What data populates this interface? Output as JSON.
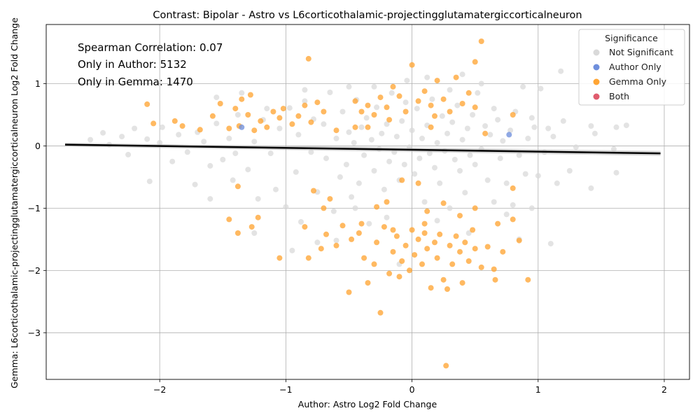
{
  "chart_data": {
    "type": "scatter",
    "title": "Contrast: Bipolar - Astro vs L6corticothalamic-projectingglutamatergiccorticalneuron",
    "xlabel": "Author: Astro Log2 Fold Change",
    "ylabel": "Gemma: L6corticothalamic-projectingglutamatergiccorticalneuron Log2 Fold Change",
    "xlim": [
      -2.9,
      2.2
    ],
    "ylim": [
      -3.75,
      1.95
    ],
    "x_ticks": [
      -2,
      -1,
      0,
      1,
      2
    ],
    "y_ticks": [
      -3,
      -2,
      -1,
      0,
      1
    ],
    "grid": true,
    "annotations": [
      "Spearman Correlation: 0.07",
      "Only in Author: 5132",
      "Only in Gemma: 1470"
    ],
    "legend": {
      "title": "Significance",
      "position": "top-right",
      "entries": [
        {
          "label": "Not Significant",
          "color": "#d9d9d9"
        },
        {
          "label": "Author Only",
          "color": "#6f8fdc"
        },
        {
          "label": "Gemma Only",
          "color": "#ffa534"
        },
        {
          "label": "Both",
          "color": "#e05c6e"
        }
      ]
    },
    "regression_line": {
      "x": [
        -2.75,
        1.97
      ],
      "y": [
        0.02,
        -0.12
      ],
      "color": "#000000"
    },
    "series": [
      {
        "name": "Not Significant",
        "color": "#d9d9d9",
        "points": [
          [
            -2.55,
            0.1
          ],
          [
            -2.45,
            0.21
          ],
          [
            -2.4,
            0.02
          ],
          [
            -2.3,
            0.15
          ],
          [
            -2.2,
            0.28
          ],
          [
            -2.1,
            0.11
          ],
          [
            -2.08,
            -0.57
          ],
          [
            -2.25,
            -0.14
          ],
          [
            -1.98,
            0.3
          ],
          [
            -1.9,
            -0.25
          ],
          [
            -1.85,
            0.18
          ],
          [
            -1.78,
            -0.1
          ],
          [
            -1.72,
            -0.62
          ],
          [
            -1.65,
            0.07
          ],
          [
            -1.6,
            -0.32
          ],
          [
            -1.55,
            0.36
          ],
          [
            -1.5,
            -0.22
          ],
          [
            -1.45,
            0.12
          ],
          [
            -1.42,
            -0.55
          ],
          [
            -1.38,
            0.5
          ],
          [
            -1.35,
            0.85
          ],
          [
            -1.3,
            -0.38
          ],
          [
            -1.25,
            0.07
          ],
          [
            -1.22,
            -0.85
          ],
          [
            -1.18,
            0.42
          ],
          [
            -1.12,
            -0.12
          ],
          [
            -1.08,
            -0.7
          ],
          [
            -1.05,
            0.28
          ],
          [
            -1.0,
            -0.98
          ],
          [
            -0.97,
            0.61
          ],
          [
            -0.92,
            -0.42
          ],
          [
            -0.9,
            0.18
          ],
          [
            -0.88,
            -1.22
          ],
          [
            -0.85,
            0.72
          ],
          [
            -0.8,
            -0.1
          ],
          [
            -0.78,
            0.43
          ],
          [
            -0.75,
            -0.74
          ],
          [
            -0.7,
            0.35
          ],
          [
            -0.68,
            -0.2
          ],
          [
            -0.65,
            0.86
          ],
          [
            -0.62,
            -1.05
          ],
          [
            -0.6,
            0.12
          ],
          [
            -0.57,
            -0.5
          ],
          [
            -0.55,
            0.55
          ],
          [
            -0.52,
            -0.3
          ],
          [
            -0.5,
            0.22
          ],
          [
            -0.48,
            -0.82
          ],
          [
            -0.46,
            0.05
          ],
          [
            -0.44,
            0.74
          ],
          [
            -0.42,
            -0.6
          ],
          [
            -0.4,
            0.3
          ],
          [
            -0.38,
            -0.15
          ],
          [
            -0.36,
            0.45
          ],
          [
            -0.34,
            -1.25
          ],
          [
            -0.32,
            0.1
          ],
          [
            -0.3,
            -0.4
          ],
          [
            -0.28,
            0.62
          ],
          [
            -0.26,
            -0.05
          ],
          [
            -0.24,
            0.2
          ],
          [
            -0.22,
            -0.7
          ],
          [
            -0.2,
            0.35
          ],
          [
            -0.18,
            -0.25
          ],
          [
            -0.16,
            0.85
          ],
          [
            -0.14,
            -0.1
          ],
          [
            -0.12,
            0.15
          ],
          [
            -0.1,
            -0.55
          ],
          [
            -0.08,
            0.4
          ],
          [
            -0.06,
            -0.3
          ],
          [
            -0.04,
            1.05
          ],
          [
            -0.02,
            -0.02
          ],
          [
            0.0,
            0.25
          ],
          [
            0.02,
            -0.45
          ],
          [
            0.04,
            0.6
          ],
          [
            0.06,
            -0.2
          ],
          [
            0.08,
            0.12
          ],
          [
            0.1,
            -0.9
          ],
          [
            0.12,
            0.33
          ],
          [
            0.14,
            -0.12
          ],
          [
            0.16,
            0.75
          ],
          [
            0.18,
            -0.35
          ],
          [
            0.2,
            0.05
          ],
          [
            0.22,
            -0.6
          ],
          [
            0.24,
            0.48
          ],
          [
            0.26,
            -0.08
          ],
          [
            0.28,
            0.2
          ],
          [
            0.3,
            -1.0
          ],
          [
            0.32,
            0.38
          ],
          [
            0.34,
            -0.22
          ],
          [
            0.36,
            0.65
          ],
          [
            0.38,
            -0.4
          ],
          [
            0.4,
            0.1
          ],
          [
            0.42,
            -0.75
          ],
          [
            0.44,
            0.28
          ],
          [
            0.46,
            -0.15
          ],
          [
            0.48,
            0.5
          ],
          [
            0.5,
            -0.3
          ],
          [
            0.52,
            0.85
          ],
          [
            0.55,
            -0.05
          ],
          [
            0.58,
            0.32
          ],
          [
            0.6,
            -0.55
          ],
          [
            0.62,
            0.18
          ],
          [
            0.65,
            -0.9
          ],
          [
            0.68,
            0.42
          ],
          [
            0.7,
            -0.2
          ],
          [
            0.72,
            0.08
          ],
          [
            0.75,
            -0.6
          ],
          [
            0.78,
            0.25
          ],
          [
            0.8,
            -0.95
          ],
          [
            0.82,
            0.55
          ],
          [
            0.85,
            -0.15
          ],
          [
            0.88,
            0.95
          ],
          [
            0.9,
            -0.45
          ],
          [
            0.92,
            0.12
          ],
          [
            0.95,
            -1.0
          ],
          [
            0.97,
            0.3
          ],
          [
            1.0,
            -0.48
          ],
          [
            1.02,
            0.92
          ],
          [
            1.05,
            -0.1
          ],
          [
            1.08,
            0.28
          ],
          [
            1.1,
            -1.57
          ],
          [
            1.12,
            0.15
          ],
          [
            1.15,
            -0.6
          ],
          [
            1.18,
            1.2
          ],
          [
            1.25,
            -0.4
          ],
          [
            1.3,
            -0.02
          ],
          [
            1.42,
            0.32
          ],
          [
            1.45,
            0.2
          ],
          [
            1.42,
            -0.68
          ],
          [
            1.6,
            -0.05
          ],
          [
            1.62,
            -0.43
          ],
          [
            1.7,
            0.33
          ],
          [
            1.62,
            0.3
          ],
          [
            -1.55,
            0.78
          ],
          [
            -0.95,
            -1.68
          ],
          [
            -0.6,
            -1.52
          ],
          [
            -0.1,
            -1.9
          ],
          [
            0.45,
            -1.4
          ],
          [
            0.85,
            -1.5
          ],
          [
            -1.25,
            -1.4
          ],
          [
            0.12,
            1.1
          ],
          [
            -0.3,
            0.95
          ],
          [
            0.3,
            0.9
          ],
          [
            -0.75,
            -1.55
          ],
          [
            0.65,
            0.6
          ],
          [
            -2.0,
            0.05
          ],
          [
            -1.7,
            0.22
          ],
          [
            -1.4,
            -0.12
          ],
          [
            -1.15,
            0.6
          ],
          [
            -0.5,
            0.95
          ],
          [
            0.55,
            1.0
          ],
          [
            0.95,
            0.45
          ],
          [
            1.2,
            0.4
          ],
          [
            -0.2,
            -1.15
          ],
          [
            0.2,
            -1.2
          ],
          [
            -0.45,
            -1.0
          ],
          [
            0.75,
            -1.1
          ],
          [
            -1.6,
            -0.85
          ],
          [
            -0.85,
            0.9
          ],
          [
            0.4,
            1.15
          ],
          [
            -0.05,
            0.7
          ]
        ]
      },
      {
        "name": "Gemma Only",
        "color": "#ffa534",
        "points": [
          [
            -2.1,
            0.67
          ],
          [
            -2.05,
            0.36
          ],
          [
            -1.88,
            0.4
          ],
          [
            -1.82,
            0.32
          ],
          [
            -1.68,
            0.26
          ],
          [
            -1.58,
            0.48
          ],
          [
            -1.52,
            0.68
          ],
          [
            -1.45,
            0.28
          ],
          [
            -1.4,
            0.6
          ],
          [
            -1.37,
            0.32
          ],
          [
            -1.35,
            0.75
          ],
          [
            -1.3,
            0.5
          ],
          [
            -1.28,
            0.82
          ],
          [
            -1.25,
            0.25
          ],
          [
            -1.2,
            0.4
          ],
          [
            -1.15,
            0.3
          ],
          [
            -1.1,
            0.55
          ],
          [
            -1.05,
            0.45
          ],
          [
            -1.02,
            0.6
          ],
          [
            -0.95,
            0.35
          ],
          [
            -0.9,
            0.48
          ],
          [
            -0.85,
            0.65
          ],
          [
            -0.8,
            0.38
          ],
          [
            -0.75,
            0.7
          ],
          [
            -0.7,
            0.55
          ],
          [
            -0.82,
            1.4
          ],
          [
            0.55,
            1.68
          ],
          [
            0.5,
            1.35
          ],
          [
            -0.45,
            0.72
          ],
          [
            -0.4,
            0.55
          ],
          [
            -0.35,
            0.65
          ],
          [
            -0.3,
            0.5
          ],
          [
            -0.25,
            0.78
          ],
          [
            -0.2,
            0.62
          ],
          [
            -0.15,
            0.95
          ],
          [
            -0.1,
            0.8
          ],
          [
            -0.05,
            0.55
          ],
          [
            0.0,
            1.3
          ],
          [
            0.05,
            0.72
          ],
          [
            0.1,
            0.88
          ],
          [
            0.15,
            0.65
          ],
          [
            0.2,
            1.05
          ],
          [
            0.25,
            0.75
          ],
          [
            0.3,
            0.55
          ],
          [
            0.35,
            1.1
          ],
          [
            0.4,
            0.68
          ],
          [
            0.45,
            0.85
          ],
          [
            0.5,
            0.62
          ],
          [
            -1.45,
            -1.18
          ],
          [
            -1.38,
            -1.4
          ],
          [
            -1.27,
            -1.3
          ],
          [
            -1.22,
            -1.15
          ],
          [
            -1.05,
            -1.8
          ],
          [
            -0.85,
            -1.3
          ],
          [
            -0.82,
            -1.8
          ],
          [
            -0.72,
            -1.65
          ],
          [
            -0.68,
            -1.42
          ],
          [
            -0.6,
            -1.6
          ],
          [
            -0.55,
            -1.28
          ],
          [
            -0.5,
            -2.35
          ],
          [
            -0.48,
            -1.5
          ],
          [
            -0.42,
            -1.4
          ],
          [
            -0.38,
            -1.8
          ],
          [
            -0.35,
            -2.2
          ],
          [
            -0.3,
            -1.9
          ],
          [
            -0.28,
            -1.55
          ],
          [
            -0.25,
            -2.68
          ],
          [
            -0.22,
            -1.3
          ],
          [
            -0.18,
            -2.05
          ],
          [
            -0.15,
            -1.7
          ],
          [
            -0.12,
            -1.45
          ],
          [
            -0.1,
            -2.1
          ],
          [
            -0.08,
            -1.85
          ],
          [
            -0.05,
            -1.6
          ],
          [
            -0.02,
            -2.0
          ],
          [
            0.0,
            -1.35
          ],
          [
            0.02,
            -1.75
          ],
          [
            0.05,
            -1.5
          ],
          [
            0.08,
            -1.9
          ],
          [
            0.1,
            -1.4
          ],
          [
            0.12,
            -1.65
          ],
          [
            0.15,
            -2.28
          ],
          [
            0.18,
            -1.55
          ],
          [
            0.2,
            -1.8
          ],
          [
            0.22,
            -1.42
          ],
          [
            0.25,
            -2.15
          ],
          [
            0.28,
            -2.3
          ],
          [
            0.3,
            -1.6
          ],
          [
            0.32,
            -1.9
          ],
          [
            0.35,
            -1.45
          ],
          [
            0.38,
            -1.7
          ],
          [
            0.4,
            -2.2
          ],
          [
            0.42,
            -1.55
          ],
          [
            0.45,
            -1.85
          ],
          [
            0.48,
            -1.35
          ],
          [
            0.5,
            -1.65
          ],
          [
            0.55,
            -1.95
          ],
          [
            0.6,
            -1.62
          ],
          [
            0.65,
            -1.98
          ],
          [
            0.68,
            -1.25
          ],
          [
            0.72,
            -1.7
          ],
          [
            0.8,
            -1.18
          ],
          [
            0.85,
            -1.52
          ],
          [
            0.92,
            -2.15
          ],
          [
            0.66,
            -2.15
          ],
          [
            0.27,
            -3.53
          ],
          [
            -0.65,
            -0.85
          ],
          [
            -0.7,
            -1.0
          ],
          [
            -0.2,
            -0.9
          ],
          [
            0.12,
            -1.05
          ],
          [
            -0.35,
            0.3
          ],
          [
            -0.6,
            0.25
          ],
          [
            -0.78,
            -0.72
          ],
          [
            -1.38,
            -0.65
          ],
          [
            0.8,
            -0.68
          ],
          [
            0.8,
            0.5
          ],
          [
            0.5,
            -1.0
          ],
          [
            0.58,
            0.2
          ],
          [
            -0.45,
            0.3
          ],
          [
            0.15,
            0.3
          ],
          [
            -0.18,
            0.42
          ],
          [
            0.18,
            0.48
          ],
          [
            -0.08,
            -0.55
          ],
          [
            0.05,
            -0.6
          ],
          [
            0.25,
            -0.92
          ],
          [
            -0.28,
            -0.98
          ],
          [
            0.38,
            -1.12
          ],
          [
            -0.4,
            -1.25
          ],
          [
            0.1,
            -1.25
          ],
          [
            -0.15,
            -1.35
          ]
        ]
      },
      {
        "name": "Author Only",
        "color": "#6f8fdc",
        "points": [
          [
            0.77,
            0.18
          ],
          [
            -1.35,
            0.3
          ]
        ]
      },
      {
        "name": "Both",
        "color": "#e05c6e",
        "points": []
      }
    ]
  }
}
